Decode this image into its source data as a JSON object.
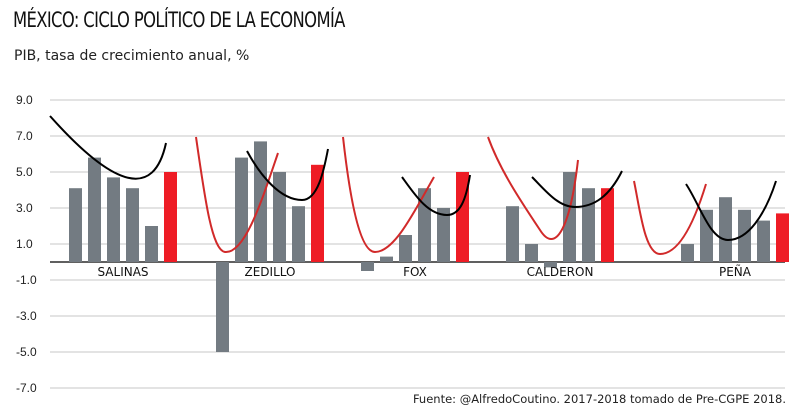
{
  "title": "MÉXICO: CICLO POLÍTICO DE LA ECONOMÍA",
  "subtitle": "PIB, tasa de crecimiento anual, %",
  "source": "Fuente: @AlfredoCoutino. 2017-2018 tomado de Pre-CGPE 2018.",
  "colors": {
    "bar_gray": "#737b82",
    "bar_red": "#ee1c25",
    "curve_red": "#d12a2a",
    "curve_black": "#000000",
    "grid": "#c7c7c7",
    "zero_line": "#000000"
  },
  "chart_data": {
    "type": "bar",
    "ylim": [
      -7,
      9
    ],
    "yticks": [
      "9.0",
      "7.0",
      "5.0",
      "3.0",
      "1.0",
      "-1.0",
      "-3.0",
      "-5.0",
      "-7.0"
    ],
    "ytick_values": [
      9,
      7,
      5,
      3,
      1,
      -1,
      -3,
      -5,
      -7
    ],
    "grid": true,
    "groups": [
      {
        "label": "SALINAS",
        "values": [
          4.1,
          5.8,
          4.7,
          4.1,
          2.0,
          5.0
        ],
        "last_year_highlight": true
      },
      {
        "label": "ZEDILLO",
        "values": [
          -5.0,
          5.8,
          6.7,
          5.0,
          3.1,
          5.4
        ],
        "last_year_highlight": true
      },
      {
        "label": "FOX",
        "values": [
          -0.5,
          0.3,
          1.5,
          4.1,
          3.0,
          5.0
        ],
        "last_year_highlight": true
      },
      {
        "label": "CALDERON",
        "values": [
          3.1,
          1.0,
          -0.3,
          5.0,
          4.1,
          4.1
        ],
        "last_year_highlight": true
      },
      {
        "label": "PEÑA",
        "values": [
          1.0,
          2.9,
          3.6,
          2.9,
          2.3,
          2.7
        ],
        "last_year_highlight": true
      }
    ]
  }
}
